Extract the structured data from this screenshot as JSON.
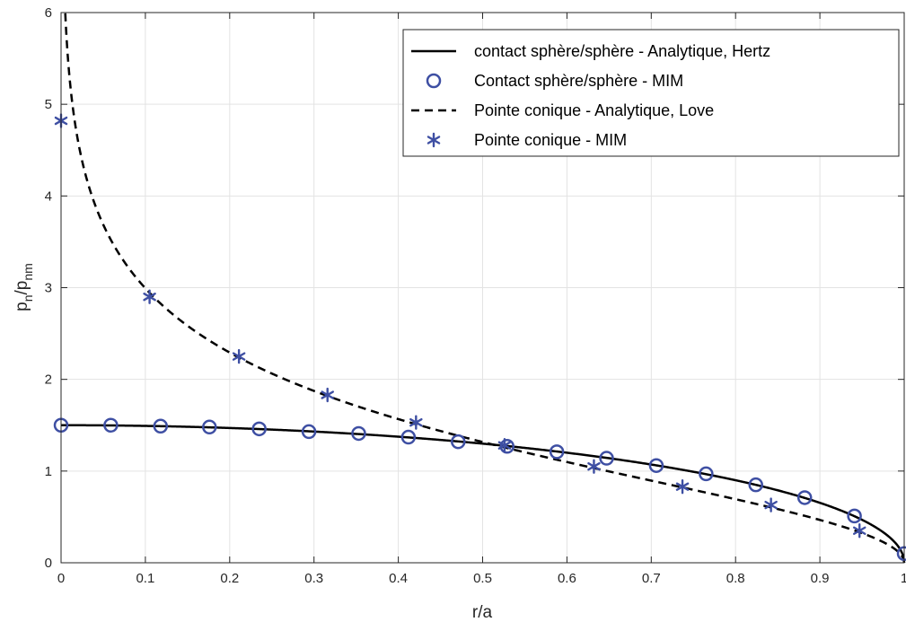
{
  "chart_data": {
    "type": "line",
    "xlabel": "r/a",
    "ylabel": {
      "base_1": "p",
      "sub_1": "n",
      "slash": "/p",
      "sub_2": "nm"
    },
    "xlim": [
      0,
      1
    ],
    "ylim": [
      0,
      6
    ],
    "xticks": [
      0,
      0.1,
      0.2,
      0.3,
      0.4,
      0.5,
      0.6,
      0.7,
      0.8,
      0.9,
      1
    ],
    "xtick_labels": [
      "0",
      "0.1",
      "0.2",
      "0.3",
      "0.4",
      "0.5",
      "0.6",
      "0.7",
      "0.8",
      "0.9",
      "1"
    ],
    "yticks": [
      0,
      1,
      2,
      3,
      4,
      5,
      6
    ],
    "ytick_labels": [
      "0",
      "1",
      "2",
      "3",
      "4",
      "5",
      "6"
    ],
    "grid": true,
    "legend_position": "top-right",
    "colors": {
      "marker": "#3e4fa3",
      "line": "#000000",
      "grid": "#e3e3e3",
      "axis": "#262626"
    },
    "series": [
      {
        "name": "contact sphère/sphère - Analytique, Hertz",
        "style": "solid-line",
        "formula": "1.5*sqrt(1-x^2)"
      },
      {
        "name": "Contact sphère/sphère - MIM",
        "style": "circle-marker",
        "x": [
          0,
          0.059,
          0.118,
          0.176,
          0.235,
          0.294,
          0.353,
          0.412,
          0.471,
          0.529,
          0.588,
          0.647,
          0.706,
          0.765,
          0.824,
          0.882,
          0.941,
          1.0
        ],
        "y": [
          1.5,
          1.5,
          1.49,
          1.48,
          1.46,
          1.43,
          1.41,
          1.37,
          1.32,
          1.27,
          1.21,
          1.14,
          1.06,
          0.97,
          0.85,
          0.71,
          0.51,
          0.1
        ]
      },
      {
        "name": "Pointe conique - Analytique, Love",
        "style": "dashed-line",
        "formula": "acosh(1/x)"
      },
      {
        "name": "Pointe conique - MIM",
        "style": "asterisk-marker",
        "x": [
          0,
          0.105,
          0.211,
          0.316,
          0.421,
          0.526,
          0.632,
          0.737,
          0.842,
          0.947
        ],
        "y": [
          4.82,
          2.9,
          2.25,
          1.83,
          1.53,
          1.28,
          1.05,
          0.83,
          0.63,
          0.35
        ]
      }
    ]
  }
}
